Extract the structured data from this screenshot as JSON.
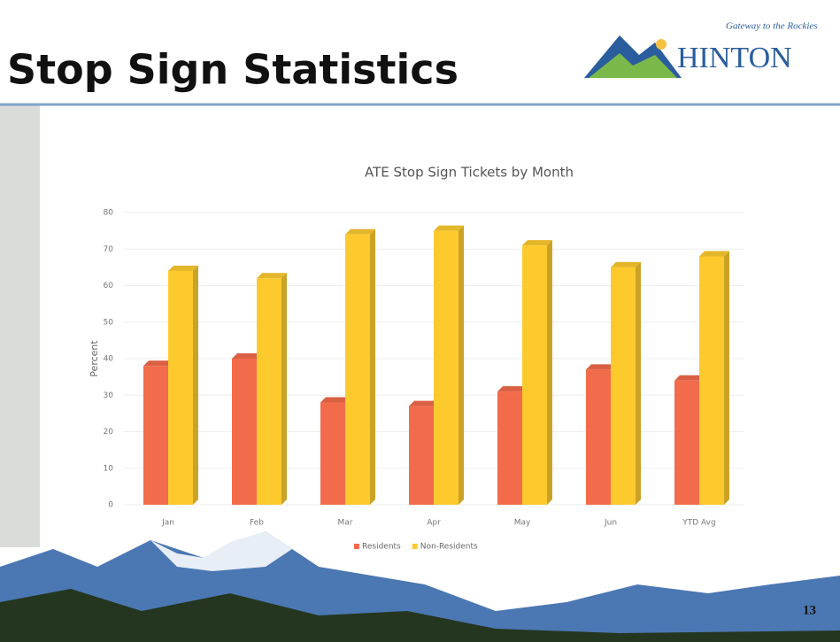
{
  "slide": {
    "title": "Stop Sign Statistics",
    "logo_tagline": "Gateway to the Rockies",
    "logo_text": "HINTON",
    "page_number": "13"
  },
  "chart_data": {
    "type": "bar",
    "title": "ATE Stop Sign Tickets by Month",
    "y_label": "Percent",
    "categories": [
      "Jan",
      "Feb",
      "Mar",
      "Apr",
      "May",
      "Jun",
      "YTD Avg"
    ],
    "series": [
      {
        "name": "Residents",
        "color": "#f26b4b",
        "values": [
          38,
          40,
          28,
          27,
          31,
          37,
          34
        ]
      },
      {
        "name": "Non-Residents",
        "color": "#fdca2e",
        "values": [
          64,
          62,
          74,
          75,
          71,
          65,
          68
        ]
      }
    ],
    "ylim": [
      0,
      80
    ],
    "yticks": [
      0,
      10,
      20,
      30,
      40,
      50,
      60,
      70,
      80
    ],
    "grid": true,
    "legend": "bottom"
  }
}
